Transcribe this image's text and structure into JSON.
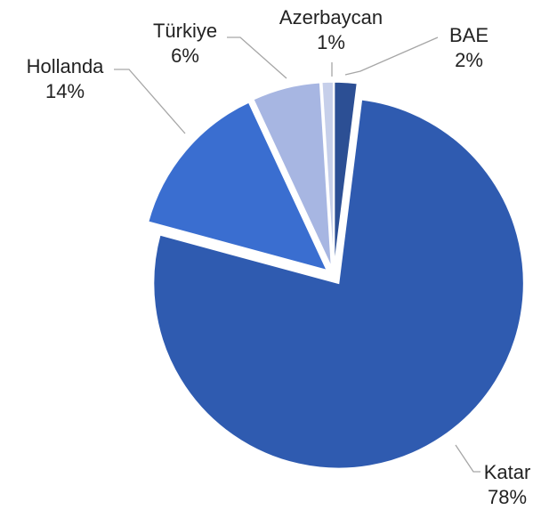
{
  "chart_data": {
    "type": "pie",
    "categories": [
      "BAE",
      "Katar",
      "Hollanda",
      "Türkiye",
      "Azerbaycan"
    ],
    "values": [
      2,
      78,
      14,
      6,
      1
    ],
    "value_labels": [
      "2%",
      "78%",
      "14%",
      "6%",
      "1%"
    ],
    "colors": [
      "#2c4f94",
      "#2f5bb0",
      "#3a6ed0",
      "#a7b6e2",
      "#c6cfea"
    ]
  }
}
